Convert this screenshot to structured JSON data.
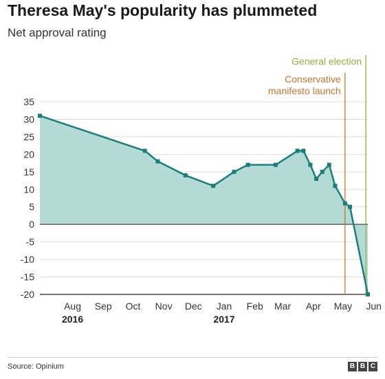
{
  "header": {
    "title": "Theresa May's popularity has plummeted",
    "subtitle": "Net approval rating"
  },
  "footer": {
    "source": "Source: Opinium",
    "logo": [
      "B",
      "B",
      "C"
    ]
  },
  "colors": {
    "line": "#1a7f7a",
    "area": "#b4dad6",
    "election": "#8db33a",
    "manifesto": "#c8752e",
    "grid": "#dddddd",
    "axis": "#222222"
  },
  "chart_data": {
    "type": "area",
    "title": "Theresa May's popularity has plummeted",
    "subtitle": "Net approval rating",
    "xlabel": "",
    "ylabel": "",
    "ylim": [
      -20,
      35
    ],
    "yticks": [
      35,
      30,
      25,
      20,
      15,
      10,
      5,
      0,
      -5,
      -10,
      -15,
      -20
    ],
    "grid": true,
    "x_axis": {
      "start": "2016-07-14",
      "end": "2017-06-10",
      "months": [
        {
          "label": "Aug",
          "date": "2016-08-01",
          "year": "2016"
        },
        {
          "label": "Sep",
          "date": "2016-09-01"
        },
        {
          "label": "Oct",
          "date": "2016-10-01"
        },
        {
          "label": "Nov",
          "date": "2016-11-01"
        },
        {
          "label": "Dec",
          "date": "2016-12-01"
        },
        {
          "label": "Jan",
          "date": "2017-01-01",
          "year": "2017"
        },
        {
          "label": "Feb",
          "date": "2017-02-01"
        },
        {
          "label": "Mar",
          "date": "2017-03-01"
        },
        {
          "label": "Apr",
          "date": "2017-04-01"
        },
        {
          "label": "May",
          "date": "2017-05-01"
        },
        {
          "label": "Jun",
          "date": "2017-06-01"
        }
      ]
    },
    "series": [
      {
        "points": [
          {
            "x": "2016-07-14",
            "y": 31
          },
          {
            "x": "2016-10-28",
            "y": 21
          },
          {
            "x": "2016-11-10",
            "y": 18
          },
          {
            "x": "2016-12-08",
            "y": 14
          },
          {
            "x": "2017-01-05",
            "y": 11
          },
          {
            "x": "2017-01-26",
            "y": 15
          },
          {
            "x": "2017-02-09",
            "y": 17
          },
          {
            "x": "2017-03-09",
            "y": 17
          },
          {
            "x": "2017-03-31",
            "y": 21
          },
          {
            "x": "2017-04-06",
            "y": 21
          },
          {
            "x": "2017-04-13",
            "y": 17
          },
          {
            "x": "2017-04-19",
            "y": 13
          },
          {
            "x": "2017-04-25",
            "y": 15
          },
          {
            "x": "2017-05-02",
            "y": 17
          },
          {
            "x": "2017-05-08",
            "y": 11
          },
          {
            "x": "2017-05-18",
            "y": 6
          },
          {
            "x": "2017-05-23",
            "y": 5
          },
          {
            "x": "2017-06-10",
            "y": -20
          }
        ]
      }
    ],
    "annotations": [
      {
        "label": "General election",
        "date": "2017-06-08",
        "color": "#8db33a"
      },
      {
        "label_lines": [
          "Conservative",
          "manifesto launch"
        ],
        "date": "2017-05-18",
        "color": "#c8752e"
      }
    ]
  }
}
